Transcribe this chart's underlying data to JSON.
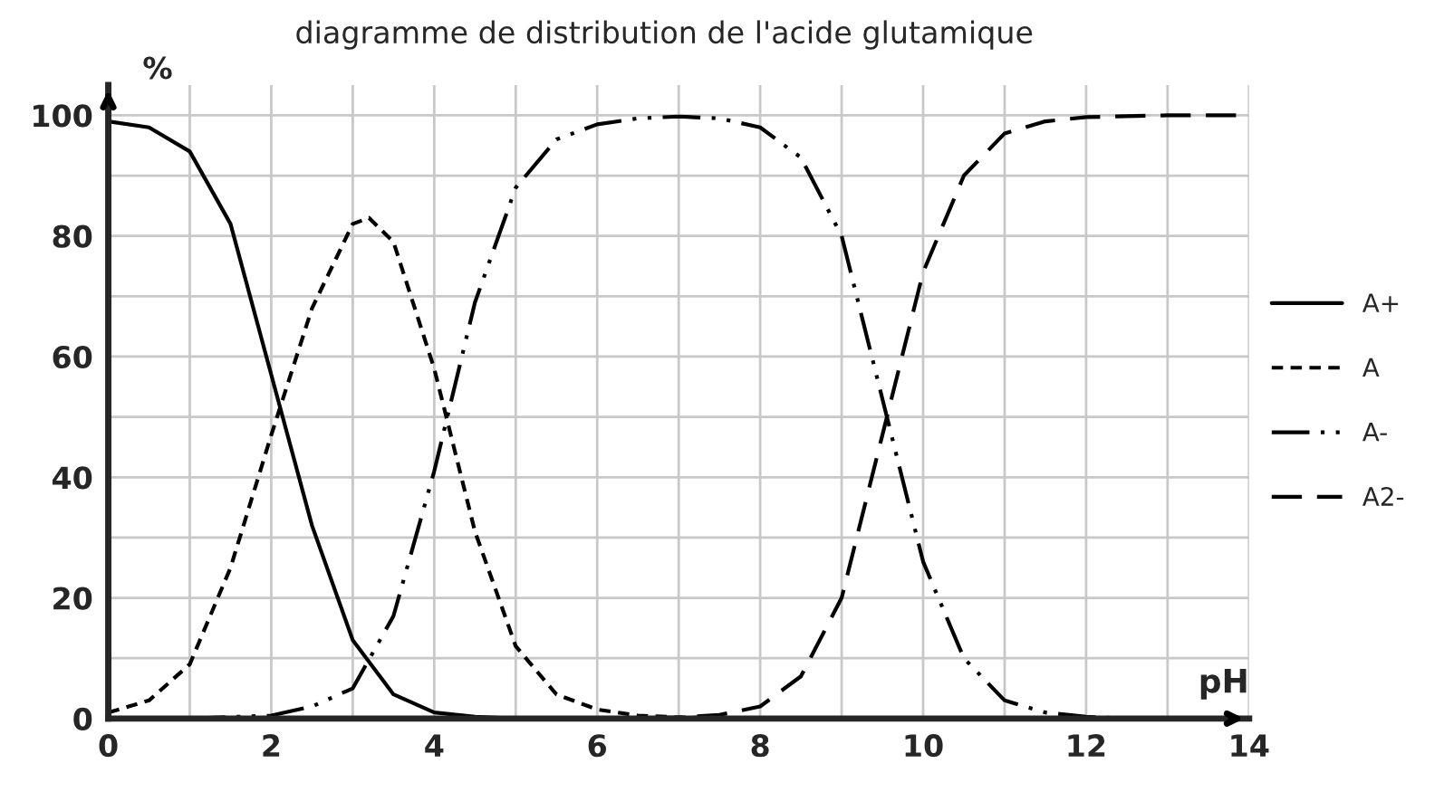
{
  "chart_data": {
    "type": "line",
    "title": "diagramme de distribution de l'acide glutamique",
    "xlabel": "pH",
    "ylabel": "%",
    "xlim": [
      0,
      14
    ],
    "ylim": [
      0,
      105
    ],
    "xticks": [
      0,
      {
        "value": 1,
        "label": null
      },
      2,
      {
        "value": 3,
        "label": null
      },
      4,
      {
        "value": 5,
        "label": null
      },
      6,
      {
        "value": 7,
        "label": null
      },
      8,
      {
        "value": 9,
        "label": null
      },
      10,
      {
        "value": 11,
        "label": null
      },
      12,
      {
        "value": 13,
        "label": null
      },
      14
    ],
    "yticks": [
      0,
      {
        "value": 10,
        "label": null
      },
      20,
      {
        "value": 30,
        "label": null
      },
      40,
      {
        "value": 50,
        "label": null
      },
      60,
      {
        "value": 70,
        "label": null
      },
      80,
      {
        "value": 90,
        "label": null
      },
      100
    ],
    "grid": true,
    "legend": "right",
    "marker": "none",
    "series": [
      {
        "name": "A+",
        "color": "#000000",
        "line_style": "solid",
        "x": [
          0,
          0.5,
          1,
          1.5,
          2,
          2.5,
          3,
          3.5,
          4,
          4.5,
          5,
          6,
          8,
          10,
          12,
          14
        ],
        "values": [
          99,
          98,
          94,
          82,
          57,
          32,
          13,
          4,
          1,
          0.3,
          0,
          0,
          0,
          0,
          0,
          0
        ]
      },
      {
        "name": "A",
        "color": "#000000",
        "line_style": "dashed",
        "x": [
          0,
          0.5,
          1,
          1.5,
          2,
          2.5,
          3,
          3.2,
          3.5,
          4,
          4.5,
          5,
          5.5,
          6,
          6.5,
          7,
          8,
          10,
          12,
          14
        ],
        "values": [
          1,
          3,
          9,
          25,
          47,
          68,
          82,
          83,
          79,
          58,
          31,
          12,
          4,
          1.5,
          0.5,
          0.2,
          0,
          0,
          0,
          0
        ]
      },
      {
        "name": "A-",
        "color": "#000000",
        "line_style": "dashdotdot",
        "x": [
          0,
          1,
          2,
          2.5,
          3,
          3.5,
          4,
          4.5,
          5,
          5.5,
          6,
          6.5,
          7,
          7.5,
          8,
          8.5,
          9,
          9.5,
          10,
          10.5,
          11,
          11.5,
          12,
          12.5,
          14
        ],
        "values": [
          0,
          0,
          0.5,
          2,
          5,
          17,
          41,
          69,
          88,
          96,
          98.5,
          99.5,
          99.8,
          99.5,
          98,
          93,
          80,
          53,
          26,
          10,
          3,
          1,
          0.3,
          0,
          0
        ]
      },
      {
        "name": "A2-",
        "color": "#000000",
        "line_style": "longdash",
        "x": [
          0,
          2,
          4,
          6,
          7,
          7.5,
          8,
          8.5,
          9,
          9.5,
          10,
          10.5,
          11,
          11.5,
          12,
          13,
          14
        ],
        "values": [
          0,
          0,
          0,
          0,
          0.2,
          0.6,
          2,
          7,
          20,
          47,
          74,
          90,
          97,
          99,
          99.7,
          100,
          100
        ]
      }
    ]
  }
}
